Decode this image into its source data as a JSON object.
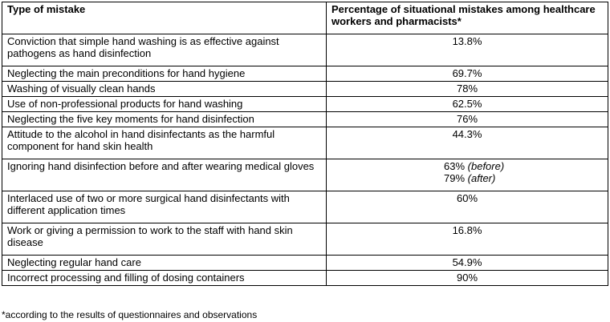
{
  "table": {
    "headers": [
      "Type of mistake",
      "Percentage of situational mistakes among healthcare workers and pharmacists*"
    ],
    "rows": [
      {
        "mistake": "Conviction that simple hand washing is as effective against pathogens as hand disinfection",
        "value": "13.8%"
      },
      {
        "mistake": "Neglecting the main preconditions for hand hygiene",
        "value": "69.7%"
      },
      {
        "mistake": "Washing of visually clean hands",
        "value": "78%"
      },
      {
        "mistake": "Use of non-professional products for hand washing",
        "value": "62.5%"
      },
      {
        "mistake": "Neglecting the five key moments for hand disinfection",
        "value": "76%"
      },
      {
        "mistake": "Attitude to the alcohol in hand disinfectants as the harmful component for hand skin health",
        "value": "44.3%"
      },
      {
        "mistake": "Ignoring hand disinfection before and after wearing medical gloves",
        "value": "63%",
        "value_note": "(before)",
        "value2": "79%",
        "value2_note": "(after)"
      },
      {
        "mistake": "Interlaced use of two or more surgical hand disinfectants with different application times",
        "value": "60%"
      },
      {
        "mistake": "Work or giving a permission to work to the staff with hand skin disease",
        "value": "16.8%"
      },
      {
        "mistake": "Neglecting regular hand care",
        "value": "54.9%"
      },
      {
        "mistake": "Incorrect processing and filling of dosing containers",
        "value": "90%"
      }
    ]
  },
  "footnote": "*according to the results of questionnaires and observations"
}
